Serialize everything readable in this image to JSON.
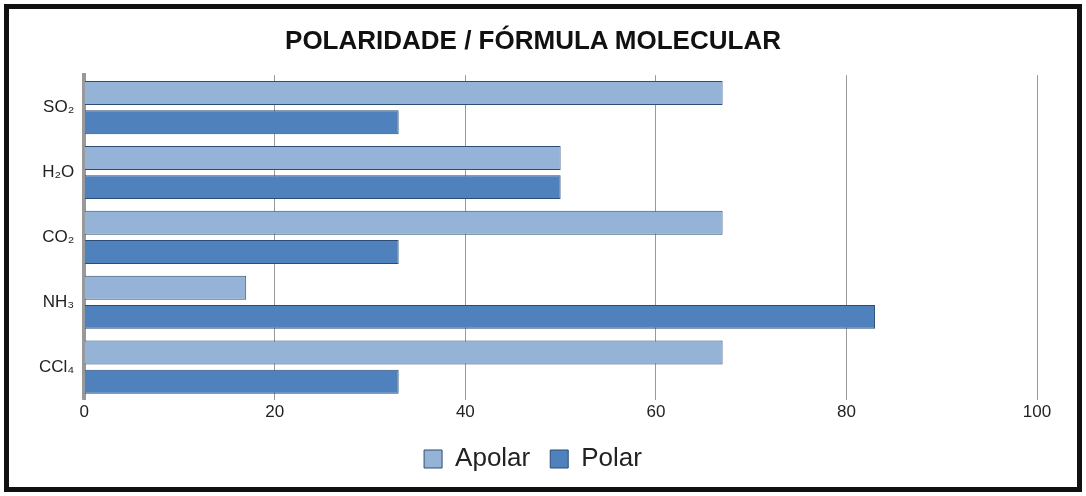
{
  "chart_data": {
    "type": "bar",
    "orientation": "horizontal",
    "title": "POLARIDADE / FÓRMULA MOLECULAR",
    "categories": [
      "SO₂",
      "H₂O",
      "CO₂",
      "NH₃",
      "CCl₄"
    ],
    "series": [
      {
        "name": "Apolar",
        "color": "#95b3d7",
        "values": [
          67,
          50,
          67,
          17,
          67
        ]
      },
      {
        "name": "Polar",
        "color": "#4f81bd",
        "values": [
          33,
          50,
          33,
          83,
          33
        ]
      }
    ],
    "xlim": [
      0,
      100
    ],
    "xticks": [
      0,
      20,
      40,
      60,
      80,
      100
    ],
    "grid": "x",
    "legend": "bottom"
  }
}
